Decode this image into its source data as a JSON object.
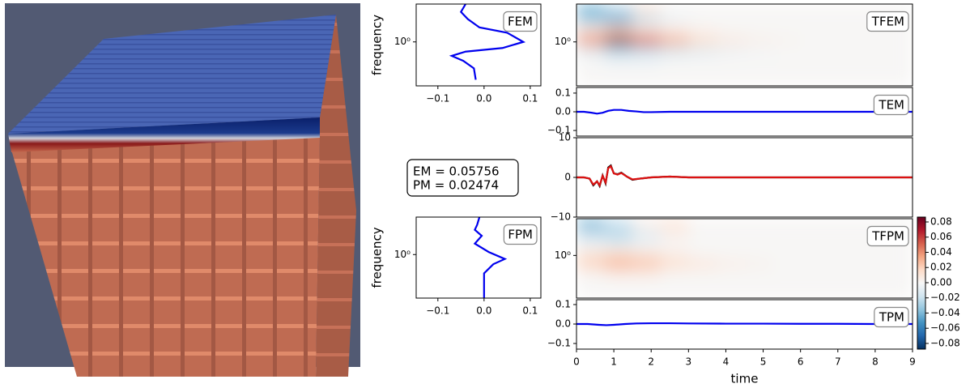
{
  "chart_data": [
    {
      "type": "line",
      "orientation": "horizontal",
      "label": "FEM",
      "ylabel": "frequency",
      "ylog": true,
      "color": "#0000ee",
      "y": [
        4.0,
        3.0,
        2.3,
        1.7,
        1.4,
        1.0,
        0.8,
        0.7,
        0.6,
        0.5,
        0.38,
        0.25
      ],
      "values": [
        -0.04,
        -0.05,
        -0.035,
        -0.01,
        0.05,
        0.085,
        0.04,
        -0.04,
        -0.07,
        -0.045,
        -0.022,
        -0.018
      ],
      "xlim": [
        -0.147,
        0.123
      ],
      "xticks": [
        {
          "value": -0.1,
          "label": "−0.1"
        },
        {
          "value": 0,
          "label": "0.0"
        },
        0.1
      ],
      "ylim": [
        0.2,
        4
      ],
      "yticks": [
        {
          "value": 1,
          "label": "10⁰"
        }
      ]
    },
    {
      "type": "line",
      "orientation": "horizontal",
      "label": "FPM",
      "ylabel": "frequency",
      "ylog": true,
      "color": "#0000ee",
      "y": [
        4.0,
        3.0,
        2.5,
        2.0,
        1.5,
        1.1,
        0.85,
        0.7,
        0.5,
        0.3,
        0.2
      ],
      "values": [
        -0.01,
        -0.015,
        -0.02,
        -0.005,
        -0.02,
        0.01,
        0.045,
        0.02,
        0.0,
        0.0,
        0.0
      ],
      "xlim": [
        -0.147,
        0.123
      ],
      "xticks": [
        {
          "value": -0.1,
          "label": "−0.1"
        },
        {
          "value": 0,
          "label": "0.0"
        },
        0.1
      ],
      "ylim": [
        0.2,
        4
      ],
      "yticks": [
        {
          "value": 1,
          "label": "10⁰"
        }
      ]
    },
    {
      "type": "heatmap",
      "label": "TFEM",
      "ylog": true,
      "xlim": [
        0,
        9
      ],
      "ylim": [
        0.2,
        4
      ],
      "yticks": [
        {
          "value": 1,
          "label": "10⁰"
        }
      ],
      "xbins": [
        0,
        0.75,
        1.5,
        2.25,
        3,
        3.75,
        4.5,
        5.25,
        6,
        6.75,
        7.5,
        8.25,
        9
      ],
      "ybins": [
        0.2,
        0.29,
        0.42,
        0.61,
        0.89,
        1.29,
        1.87,
        2.73,
        4
      ],
      "z": [
        [
          0,
          0,
          0,
          0,
          0,
          0,
          0,
          0,
          0,
          0,
          0,
          0
        ],
        [
          0,
          0,
          0,
          0,
          0,
          0,
          0,
          0,
          0,
          0,
          0,
          0
        ],
        [
          0,
          -0.005,
          -0.005,
          0,
          0,
          0,
          0,
          0,
          0,
          0,
          0,
          0
        ],
        [
          -0.01,
          -0.025,
          -0.02,
          -0.015,
          -0.01,
          -0.005,
          -0.003,
          0,
          0,
          0,
          0,
          0
        ],
        [
          0.04,
          0.08,
          0.05,
          0.03,
          0.015,
          0.008,
          0.004,
          0.002,
          0,
          0,
          0,
          0
        ],
        [
          0.01,
          0.02,
          0.01,
          0.005,
          0.002,
          0,
          0,
          0,
          0,
          0,
          0,
          0
        ],
        [
          -0.03,
          -0.045,
          -0.02,
          -0.005,
          0,
          0,
          0,
          0,
          0,
          0,
          0,
          0
        ],
        [
          -0.04,
          -0.02,
          0.01,
          0,
          0,
          0,
          0,
          0,
          0,
          0,
          0,
          0
        ]
      ]
    },
    {
      "type": "line",
      "label": "TEM",
      "color": "#0000ee",
      "xlim": [
        0,
        9
      ],
      "ylim": [
        -0.13,
        0.13
      ],
      "yticks": [
        {
          "value": -0.1,
          "label": "−0.1"
        },
        {
          "value": 0,
          "label": "0.0"
        },
        0.1
      ],
      "x": [
        0,
        0.2,
        0.4,
        0.55,
        0.7,
        0.85,
        1.0,
        1.2,
        1.4,
        1.6,
        1.8,
        2.0,
        2.5,
        3,
        4,
        5,
        6,
        7,
        8,
        9
      ],
      "values": [
        0,
        0,
        -0.005,
        -0.01,
        -0.005,
        0.005,
        0.01,
        0.01,
        0.005,
        0.002,
        -0.002,
        -0.002,
        0,
        0,
        0,
        0,
        0,
        0,
        0,
        0
      ]
    },
    {
      "type": "line",
      "xlim": [
        0,
        9
      ],
      "ylim": [
        -10,
        10
      ],
      "yticks": [
        {
          "value": -10,
          "label": "−10"
        },
        0,
        10
      ],
      "x": [
        0,
        0.2,
        0.35,
        0.45,
        0.55,
        0.62,
        0.7,
        0.78,
        0.85,
        0.92,
        1.0,
        1.1,
        1.2,
        1.35,
        1.5,
        1.7,
        2.0,
        2.5,
        3,
        9
      ],
      "series": [
        {
          "color": "#000000",
          "values": [
            0,
            0,
            -0.3,
            -2.0,
            -1.0,
            -2.2,
            0.5,
            -1.5,
            2.5,
            3.0,
            1.0,
            0.8,
            1.2,
            0.2,
            -0.6,
            -0.3,
            0,
            0.2,
            0,
            0
          ]
        },
        {
          "color": "#dd1111",
          "values": [
            0,
            0,
            -0.3,
            -1.8,
            -1.0,
            -2.0,
            0.4,
            -1.3,
            2.3,
            2.8,
            1.0,
            0.7,
            1.1,
            0.2,
            -0.5,
            -0.3,
            0,
            0.2,
            0,
            0
          ]
        }
      ]
    },
    {
      "type": "heatmap",
      "label": "TFPM",
      "ylog": true,
      "xlim": [
        0,
        9
      ],
      "ylim": [
        0.2,
        4
      ],
      "yticks": [
        {
          "value": 1,
          "label": "10⁰"
        }
      ],
      "xbins": [
        0,
        0.75,
        1.5,
        2.25,
        3,
        3.75,
        4.5,
        5.25,
        6,
        6.75,
        7.5,
        8.25,
        9
      ],
      "ybins": [
        0.2,
        0.29,
        0.42,
        0.61,
        0.89,
        1.29,
        1.87,
        2.73,
        4
      ],
      "z": [
        [
          0,
          0,
          0,
          0,
          0,
          0,
          0,
          0,
          0,
          0,
          0,
          0
        ],
        [
          0,
          0,
          0,
          0,
          0,
          0,
          0,
          0,
          0,
          0,
          0,
          0
        ],
        [
          0,
          0.005,
          0.005,
          0,
          0,
          0,
          0,
          0,
          0,
          0,
          0,
          0
        ],
        [
          0.02,
          0.03,
          0.025,
          0.015,
          0.01,
          0.005,
          0.003,
          0,
          0,
          0,
          0,
          0
        ],
        [
          0.01,
          0.015,
          0.01,
          0.005,
          0,
          0,
          0,
          0,
          0,
          0,
          0,
          0
        ],
        [
          -0.005,
          -0.01,
          -0.005,
          0,
          0,
          0,
          0,
          0,
          0,
          0,
          0,
          0
        ],
        [
          -0.02,
          -0.025,
          -0.01,
          0.005,
          0,
          0,
          0,
          0,
          0,
          0,
          0,
          0
        ],
        [
          -0.04,
          -0.02,
          0.005,
          0.01,
          0,
          0,
          0,
          0,
          0,
          0,
          0,
          0
        ]
      ]
    },
    {
      "type": "line",
      "label": "TPM",
      "color": "#0000ee",
      "xlim": [
        0,
        9
      ],
      "ylim": [
        -0.129,
        0.125
      ],
      "yticks": [
        {
          "value": -0.1,
          "label": "−0.1"
        },
        {
          "value": 0,
          "label": "0.0"
        },
        0.1
      ],
      "xticks": [
        0,
        1,
        2,
        3,
        4,
        5,
        6,
        7,
        8,
        9
      ],
      "xlabel": "time",
      "x": [
        0,
        0.3,
        0.6,
        0.8,
        1.0,
        1.3,
        1.6,
        2.0,
        2.5,
        3,
        4,
        5,
        6,
        7,
        8,
        9
      ],
      "values": [
        0,
        0,
        -0.004,
        -0.006,
        -0.004,
        0,
        0.003,
        0.004,
        0.004,
        0.003,
        0.002,
        0.002,
        0.001,
        0.001,
        0,
        0
      ]
    },
    {
      "type": "colorbar",
      "lim": [
        -0.0875,
        0.0864
      ],
      "cmap": [
        "#053061",
        "#2166ac",
        "#4393c3",
        "#92c5de",
        "#d1e5f0",
        "#f7f7f7",
        "#fddbc7",
        "#f4a582",
        "#d6604d",
        "#b2182b",
        "#67001f"
      ],
      "ticks": [
        {
          "value": -0.08,
          "label": "−0.08"
        },
        {
          "value": -0.06,
          "label": "−0.06"
        },
        {
          "value": -0.04,
          "label": "−0.04"
        },
        {
          "value": -0.02,
          "label": "−0.02"
        },
        {
          "value": 0,
          "label": "0.00"
        },
        {
          "value": 0.02,
          "label": "0.02"
        },
        {
          "value": 0.04,
          "label": "0.04"
        },
        {
          "value": 0.06,
          "label": "0.06"
        },
        {
          "value": 0.08,
          "label": "0.08"
        }
      ]
    }
  ],
  "annotation": [
    "EM = 0.05756",
    "PM = 0.02474"
  ]
}
